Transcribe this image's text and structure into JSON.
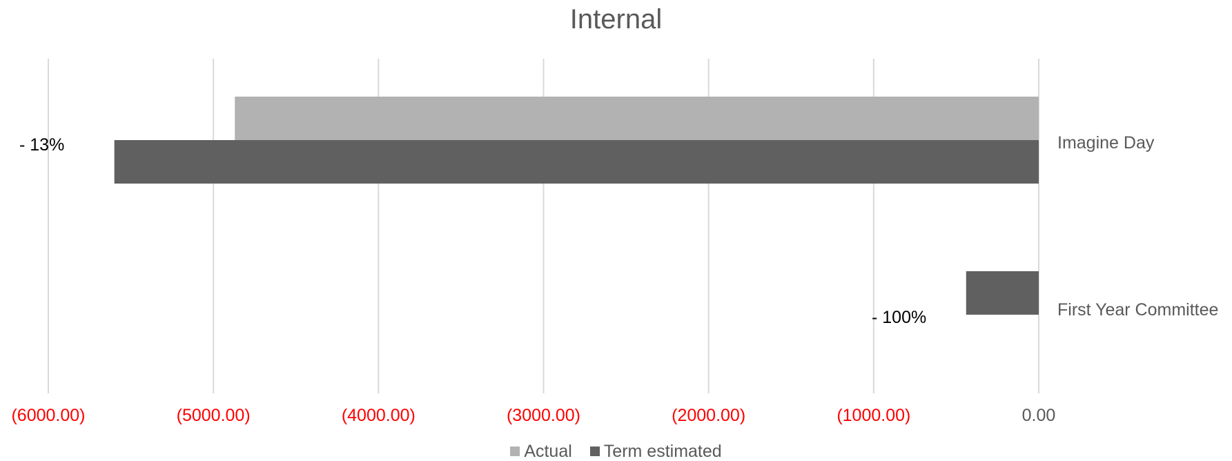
{
  "chart_data": {
    "type": "bar",
    "orientation": "horizontal",
    "title": "Internal",
    "categories": [
      "Imagine Day",
      "First Year Committee"
    ],
    "series": [
      {
        "name": "Actual",
        "values": [
          -4870,
          0
        ],
        "color": "#b2b2b2"
      },
      {
        "name": "Term estimated",
        "values": [
          -5600,
          -440
        ],
        "color": "#606060"
      }
    ],
    "xlim": [
      -6000,
      0
    ],
    "xticks": [
      -6000,
      -5000,
      -4000,
      -3000,
      -2000,
      -1000,
      0
    ],
    "xtick_labels": [
      "(6000.00)",
      "(5000.00)",
      "(4000.00)",
      "(3000.00)",
      "(2000.00)",
      "(1000.00)",
      "0.00"
    ],
    "negative_tick_color": "#ff0000",
    "zero_tick_color": "#595959",
    "grid": true,
    "legend_position": "bottom",
    "annotations": [
      {
        "category": "Imagine Day",
        "text": "- 13%"
      },
      {
        "category": "First Year Committee",
        "text": "- 100%"
      }
    ]
  }
}
